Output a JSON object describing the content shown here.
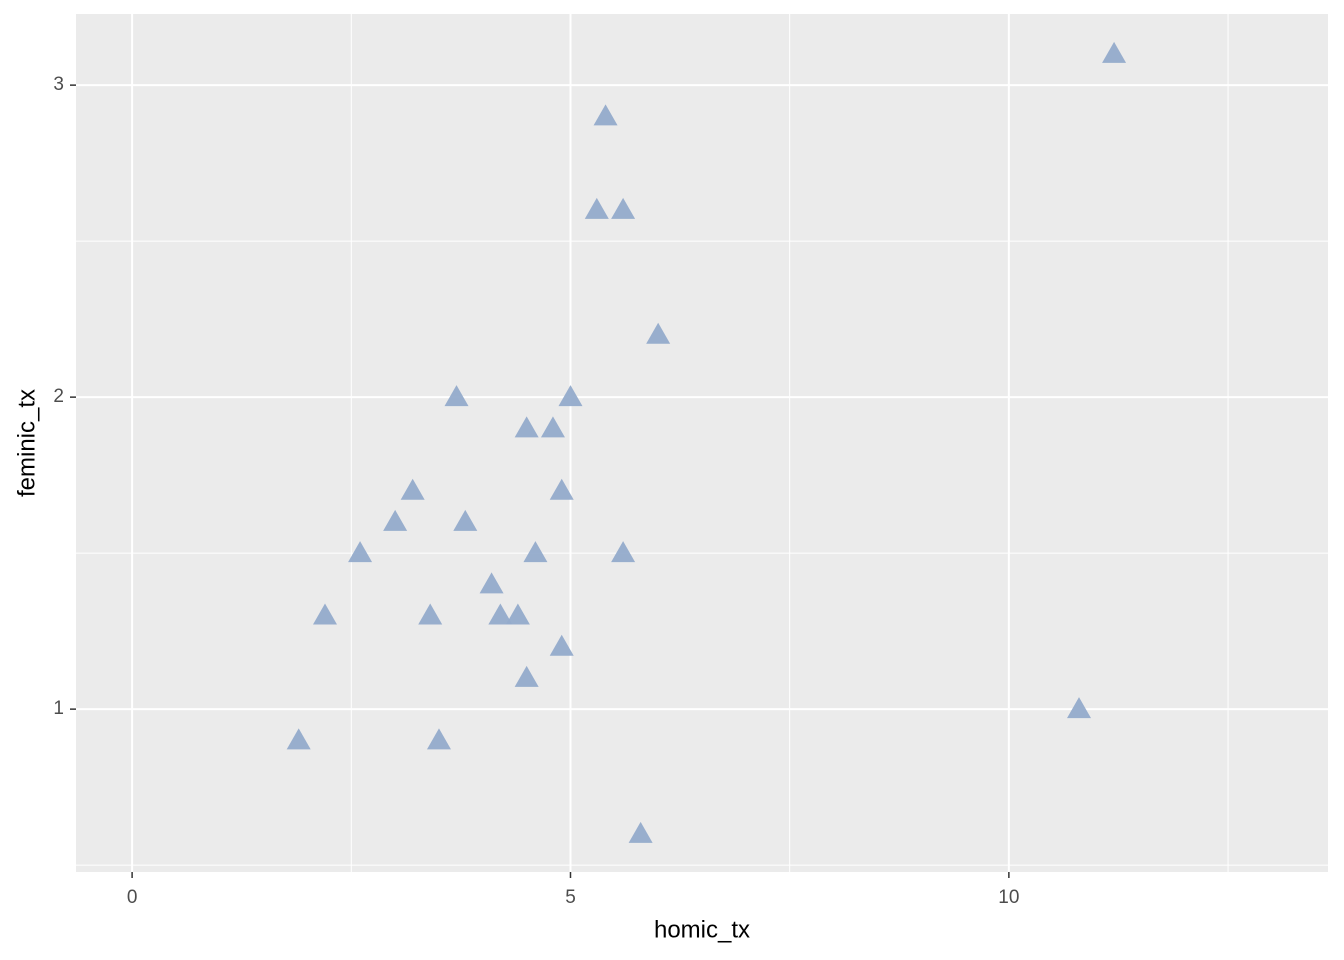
{
  "chart_data": {
    "type": "scatter",
    "x_label": "homic_tx",
    "y_label": "feminic_tx",
    "color": "#93abcb",
    "xlim": [
      -0.64,
      13.64
    ],
    "ylim": [
      0.478,
      3.228
    ],
    "xticks": [
      0,
      5,
      10
    ],
    "yticks": [
      1,
      2,
      3
    ],
    "x_minor_ticks": [
      2.5,
      7.5,
      12.5
    ],
    "y_minor_ticks": [
      0.5,
      1.5,
      2.5
    ],
    "grid": true,
    "x": [
      11.2,
      5.4,
      5.3,
      5.6,
      6.0,
      3.7,
      5.0,
      4.5,
      4.8,
      3.2,
      4.9,
      3.0,
      3.8,
      2.6,
      4.6,
      5.6,
      4.1,
      2.2,
      3.4,
      4.2,
      4.4,
      4.9,
      4.5,
      10.8,
      1.9,
      3.5,
      5.8
    ],
    "values": [
      3.1,
      2.9,
      2.6,
      2.6,
      2.2,
      2.0,
      2.0,
      1.9,
      1.9,
      1.7,
      1.7,
      1.6,
      1.6,
      1.5,
      1.5,
      1.5,
      1.4,
      1.3,
      1.3,
      1.3,
      1.3,
      1.2,
      1.1,
      1.0,
      0.9,
      0.9,
      0.6
    ]
  }
}
